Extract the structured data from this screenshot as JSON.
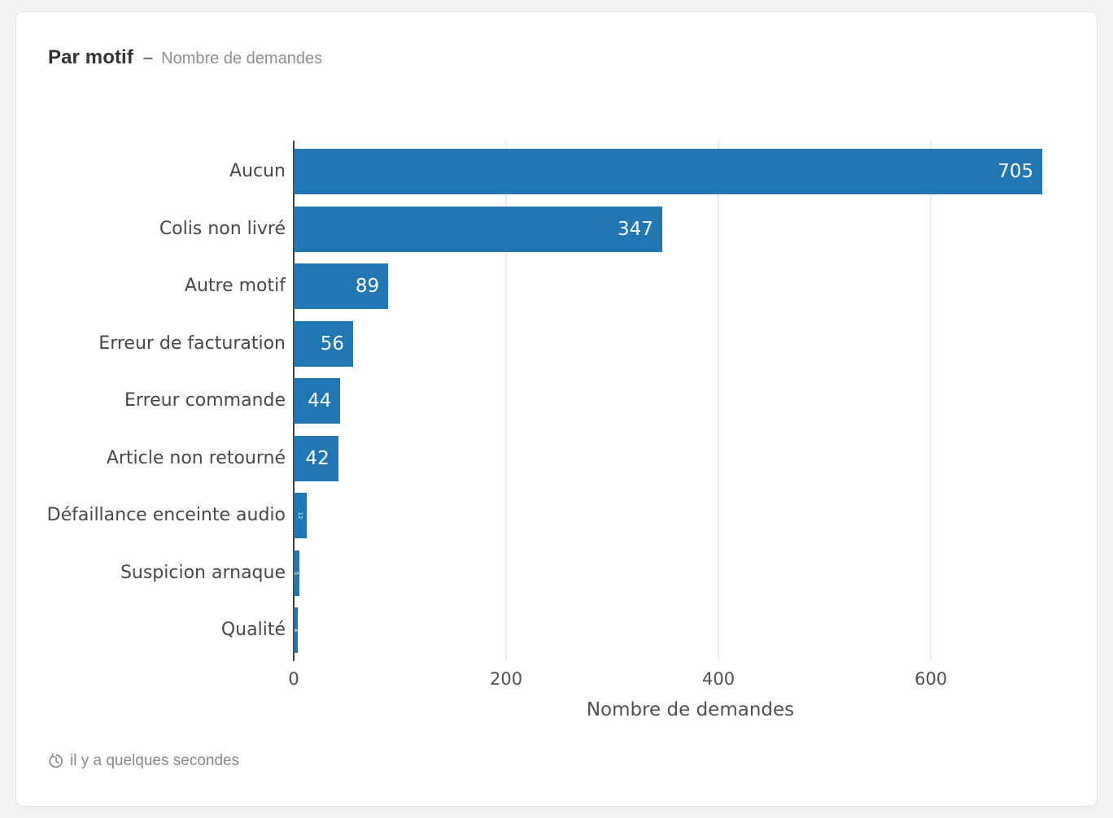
{
  "card": {
    "title": "Par motif",
    "separator": "–",
    "subtitle": "Nombre de demandes",
    "footer": {
      "icon": "clock-history-icon",
      "updated_text": "il y a quelques secondes"
    }
  },
  "chart_data": {
    "type": "bar",
    "orientation": "horizontal",
    "title": "Par motif",
    "subtitle": "Nombre de demandes",
    "categories": [
      "Aucun",
      "Colis non livré",
      "Autre motif",
      "Erreur de facturation",
      "Erreur commande",
      "Article non retourné",
      "Défaillance enceinte audio",
      "Suspicion arnaque",
      "Qualité"
    ],
    "values": [
      705,
      347,
      89,
      56,
      44,
      42,
      12,
      5,
      4
    ],
    "xlabel": "Nombre de demandes",
    "ylabel": "",
    "xlim": [
      0,
      747
    ],
    "xticks": [
      0,
      200,
      400,
      600
    ],
    "grid": "vertical-light",
    "legend": "none",
    "bar_color": "#2177b4",
    "value_label_color": "#ffffff",
    "gridline_color": "#ececec",
    "axis_line_color": "#414141"
  }
}
